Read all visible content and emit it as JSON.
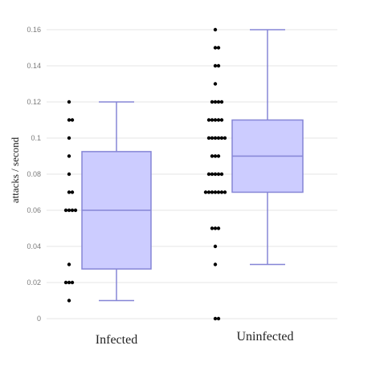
{
  "chart_data": {
    "type": "box",
    "title": "",
    "xlabel": "",
    "ylabel": "attacks / second",
    "ylim": [
      0,
      0.16
    ],
    "yticks": [
      "0",
      "0.02",
      "0.04",
      "0.06",
      "0.08",
      "0.1",
      "0.12",
      "0.14",
      "0.16"
    ],
    "grid": true,
    "categories": [
      "Infected",
      "Uninfected"
    ],
    "boxes": [
      {
        "min": 0.01,
        "q1": 0.0275,
        "median": 0.06,
        "q3": 0.0925,
        "max": 0.12
      },
      {
        "min": 0.03,
        "q1": 0.07,
        "median": 0.09,
        "q3": 0.11,
        "max": 0.16
      }
    ],
    "points": [
      [
        0.12,
        0.11,
        0.11,
        0.1,
        0.09,
        0.08,
        0.07,
        0.07,
        0.06,
        0.06,
        0.06,
        0.06,
        0.03,
        0.02,
        0.02,
        0.02,
        0.01
      ],
      [
        0.16,
        0.15,
        0.15,
        0.14,
        0.14,
        0.13,
        0.12,
        0.12,
        0.12,
        0.12,
        0.11,
        0.11,
        0.11,
        0.11,
        0.11,
        0.1,
        0.1,
        0.1,
        0.1,
        0.1,
        0.1,
        0.09,
        0.09,
        0.09,
        0.08,
        0.08,
        0.08,
        0.08,
        0.08,
        0.07,
        0.07,
        0.07,
        0.07,
        0.07,
        0.07,
        0.07,
        0.05,
        0.05,
        0.05,
        0.04,
        0.03,
        0.0,
        0.0
      ]
    ],
    "colors": {
      "box_fill": "#ccccff",
      "box_stroke": "#8585d6",
      "point": "#000000",
      "grid": "#e6e6e6"
    }
  }
}
